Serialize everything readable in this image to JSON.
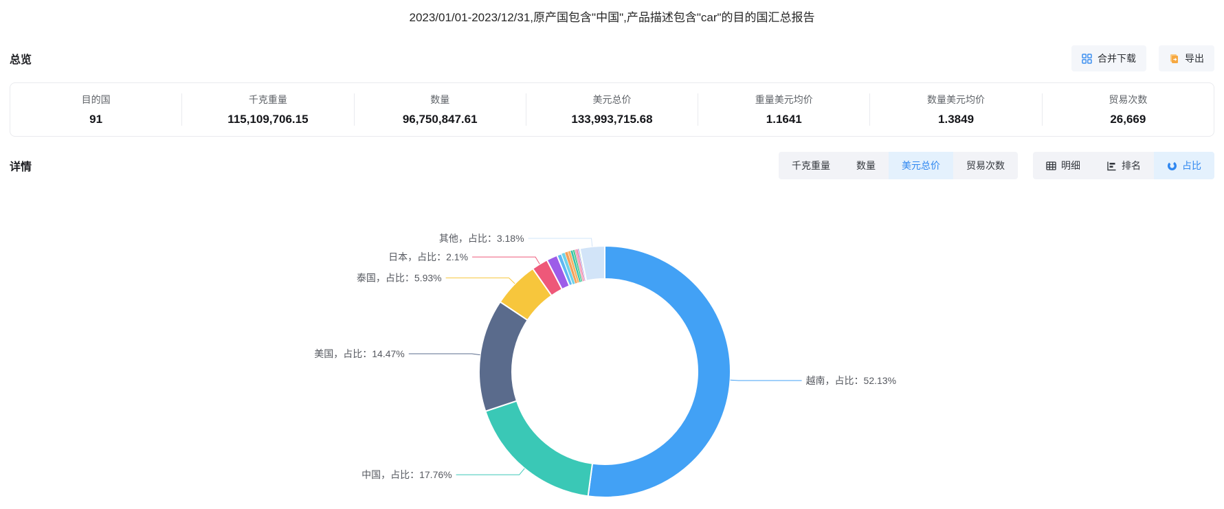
{
  "title": "2023/01/01-2023/12/31,原产国包含\"中国\",产品描述包含\"car\"的目的国汇总报告",
  "overview": {
    "heading": "总览",
    "actions": {
      "merge_download": "合并下载",
      "export": "导出"
    },
    "stats": [
      {
        "label": "目的国",
        "value": "91"
      },
      {
        "label": "千克重量",
        "value": "115,109,706.15"
      },
      {
        "label": "数量",
        "value": "96,750,847.61"
      },
      {
        "label": "美元总价",
        "value": "133,993,715.68"
      },
      {
        "label": "重量美元均价",
        "value": "1.1641"
      },
      {
        "label": "数量美元均价",
        "value": "1.3849"
      },
      {
        "label": "贸易次数",
        "value": "26,669"
      }
    ]
  },
  "details": {
    "heading": "详情",
    "metric_tabs": [
      {
        "label": "千克重量",
        "active": false
      },
      {
        "label": "数量",
        "active": false
      },
      {
        "label": "美元总价",
        "active": true
      },
      {
        "label": "贸易次数",
        "active": false
      }
    ],
    "view_tabs": [
      {
        "label": "明细",
        "icon": "table-icon",
        "active": false
      },
      {
        "label": "排名",
        "icon": "ranking-icon",
        "active": false
      },
      {
        "label": "占比",
        "icon": "donut-icon",
        "active": true
      }
    ]
  },
  "chart_data": {
    "type": "pie",
    "subtype": "donut",
    "label_template": "{name}，占比：{value}%",
    "label_position": "outside",
    "legend": "none",
    "segments": [
      {
        "name": "越南",
        "value": 52.13,
        "color": "#42A1F5",
        "labeled": true
      },
      {
        "name": "中国",
        "value": 17.76,
        "color": "#3AC8B6",
        "labeled": true
      },
      {
        "name": "美国",
        "value": 14.47,
        "color": "#5A6B8C",
        "labeled": true
      },
      {
        "name": "泰国",
        "value": 5.93,
        "color": "#F7C63C",
        "labeled": true
      },
      {
        "name": "日本",
        "value": 2.1,
        "color": "#EE5879",
        "labeled": true
      },
      {
        "name": "",
        "value": 1.4,
        "color": "#9D5CE8",
        "labeled": false
      },
      {
        "name": "",
        "value": 0.6,
        "color": "#5FB7F2",
        "labeled": false
      },
      {
        "name": "",
        "value": 0.45,
        "color": "#6FD3E8",
        "labeled": false
      },
      {
        "name": "",
        "value": 0.4,
        "color": "#F5A05A",
        "labeled": false
      },
      {
        "name": "",
        "value": 0.35,
        "color": "#F7B267",
        "labeled": false
      },
      {
        "name": "",
        "value": 0.3,
        "color": "#35C3A9",
        "labeled": false
      },
      {
        "name": "",
        "value": 0.25,
        "color": "#4BC98F",
        "labeled": false
      },
      {
        "name": "",
        "value": 0.2,
        "color": "#F48FB1",
        "labeled": false
      },
      {
        "name": "",
        "value": 0.18,
        "color": "#EF6B8B",
        "labeled": false
      },
      {
        "name": "",
        "value": 0.15,
        "color": "#B08CE8",
        "labeled": false
      },
      {
        "name": "",
        "value": 0.15,
        "color": "#8ADB9E",
        "labeled": false
      },
      {
        "name": "其他",
        "value": 3.18,
        "color": "#D2E4F8",
        "labeled": true
      }
    ]
  }
}
